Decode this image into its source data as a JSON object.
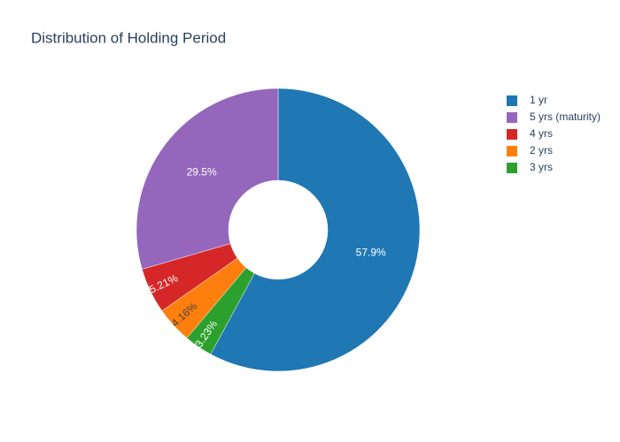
{
  "chart_data": {
    "type": "pie",
    "title": "Distribution of Holding Period",
    "categories": [
      "1 yr",
      "5 yrs (maturity)",
      "4 yrs",
      "2 yrs",
      "3 yrs"
    ],
    "values": [
      57.9,
      29.5,
      5.21,
      4.16,
      3.23
    ],
    "value_labels": [
      "57.9%",
      "29.5%",
      "5.21%",
      "4.16%",
      "3.23%"
    ],
    "colors": [
      "#1f77b4",
      "#9467bd",
      "#d62728",
      "#ff7f0e",
      "#2ca02c"
    ],
    "hole": 0.35,
    "direction": "counterclockwise",
    "legend": "right"
  }
}
